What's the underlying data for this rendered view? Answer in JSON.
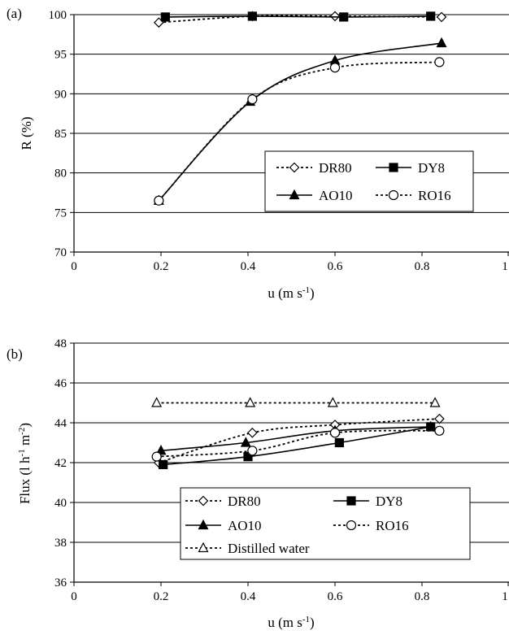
{
  "chart_data": [
    {
      "type": "line",
      "panel_label": "(a)",
      "xlabel": "u (m s",
      "xlabel_sup": "-1",
      "xlabel_end": ")",
      "ylabel": "R (%)",
      "xlim": [
        0,
        1
      ],
      "ylim": [
        70,
        100
      ],
      "xticks": [
        "0",
        "0.2",
        "0.4",
        "0.6",
        "0.8",
        "1"
      ],
      "yticks": [
        "70",
        "75",
        "80",
        "85",
        "90",
        "95",
        "100"
      ],
      "grid": "horizontal",
      "legend_position": "lower-right",
      "series": [
        {
          "name": "DR80",
          "marker": "diamond-open",
          "line": "dotted",
          "x": [
            0.195,
            0.41,
            0.6,
            0.845
          ],
          "y": [
            99.0,
            99.8,
            99.8,
            99.7
          ]
        },
        {
          "name": "DY8",
          "marker": "square-filled",
          "line": "solid",
          "x": [
            0.21,
            0.41,
            0.62,
            0.82
          ],
          "y": [
            99.7,
            99.8,
            99.7,
            99.8
          ]
        },
        {
          "name": "AO10",
          "marker": "triangle-filled",
          "line": "solid",
          "x": [
            0.195,
            0.405,
            0.6,
            0.845
          ],
          "y": [
            76.5,
            89.0,
            94.2,
            96.4
          ]
        },
        {
          "name": "RO16",
          "marker": "circle-open",
          "line": "dotted",
          "x": [
            0.195,
            0.41,
            0.6,
            0.84
          ],
          "y": [
            76.5,
            89.3,
            93.3,
            94.0
          ]
        }
      ]
    },
    {
      "type": "line",
      "panel_label": "(b)",
      "xlabel": "u (m s",
      "xlabel_sup": "-1",
      "xlabel_end": ")",
      "ylabel": "Flux (l h",
      "ylabel_sup1": "-1",
      "ylabel_mid": " m",
      "ylabel_sup2": "-2",
      "ylabel_end": ")",
      "xlim": [
        0,
        1
      ],
      "ylim": [
        36,
        48
      ],
      "xticks": [
        "0",
        "0.2",
        "0.4",
        "0.6",
        "0.8",
        "1"
      ],
      "yticks": [
        "36",
        "38",
        "40",
        "42",
        "44",
        "46",
        "48"
      ],
      "grid": "horizontal",
      "legend_position": "lower-center",
      "series": [
        {
          "name": "DR80",
          "marker": "diamond-open",
          "line": "dotted",
          "x": [
            0.195,
            0.41,
            0.6,
            0.84
          ],
          "y": [
            42.0,
            43.5,
            43.9,
            44.2
          ]
        },
        {
          "name": "DY8",
          "marker": "square-filled",
          "line": "solid",
          "x": [
            0.205,
            0.4,
            0.61,
            0.82
          ],
          "y": [
            41.9,
            42.3,
            43.0,
            43.8
          ]
        },
        {
          "name": "AO10",
          "marker": "triangle-filled",
          "line": "solid",
          "x": [
            0.2,
            0.395,
            0.6,
            0.82
          ],
          "y": [
            42.6,
            43.0,
            43.6,
            43.8
          ]
        },
        {
          "name": "RO16",
          "marker": "circle-open",
          "line": "dotted",
          "x": [
            0.19,
            0.41,
            0.6,
            0.84
          ],
          "y": [
            42.3,
            42.6,
            43.5,
            43.6
          ]
        },
        {
          "name": "Distilled water",
          "marker": "triangle-open",
          "line": "dotted",
          "x": [
            0.19,
            0.405,
            0.595,
            0.83
          ],
          "y": [
            45.0,
            45.0,
            45.0,
            45.0
          ]
        }
      ]
    }
  ]
}
